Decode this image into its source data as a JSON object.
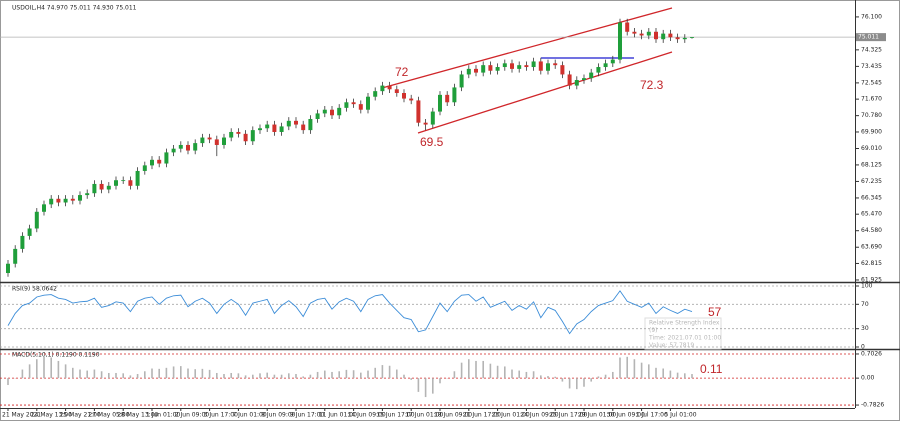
{
  "chart_data": [
    {
      "type": "candlestick",
      "title": "USDOIL,H4 74.970 75.011 74.930 75.011",
      "categories": [
        "21 May 2021",
        null,
        null,
        null,
        "24 May 13:00",
        null,
        null,
        null,
        "25 May 21:00",
        null,
        null,
        null,
        "27 May 05:00",
        null,
        null,
        null,
        "28 May 13:00",
        null,
        null,
        null,
        "1 Jun 01:00",
        null,
        null,
        null,
        "2 Jun 09:00",
        null,
        null,
        null,
        "3 Jun 17:00",
        null,
        null,
        null,
        "7 Jun 01:00",
        null,
        null,
        null,
        "8 Jun 09:00",
        null,
        null,
        null,
        "9 Jun 17:00",
        null,
        null,
        null,
        "11 Jun 01:00",
        null,
        null,
        null,
        "14 Jun 09:00",
        null,
        null,
        null,
        "15 Jun 17:00",
        null,
        null,
        null,
        "17 Jun 01:00",
        null,
        null,
        null,
        "18 Jun 09:00",
        null,
        null,
        null,
        "21 Jun 17:00",
        null,
        null,
        null,
        "23 Jun 01:00",
        null,
        null,
        null,
        "24 Jun 09:00",
        null,
        null,
        null,
        "25 Jun 17:00",
        null,
        null,
        null,
        "29 Jun 01:00",
        null,
        null,
        null,
        "30 Jun 09:00",
        null,
        null,
        null,
        "1 Jul 17:00",
        null,
        null,
        null,
        "5 Jul 01:00",
        null,
        null,
        null
      ],
      "open": [
        62.3,
        62.8,
        63.6,
        64.3,
        64.7,
        65.6,
        66.0,
        66.3,
        66.1,
        66.3,
        66.2,
        66.5,
        66.6,
        67.1,
        66.8,
        67.0,
        67.3,
        67.3,
        67.0,
        67.8,
        68.1,
        68.4,
        68.2,
        68.8,
        69.0,
        69.2,
        68.9,
        69.3,
        69.6,
        69.5,
        69.2,
        69.6,
        69.9,
        69.8,
        69.4,
        70.0,
        70.1,
        70.3,
        69.9,
        70.2,
        70.5,
        70.3,
        70.0,
        70.6,
        70.9,
        71.1,
        70.8,
        71.2,
        71.5,
        71.4,
        71.1,
        71.8,
        72.1,
        72.4,
        72.2,
        72.0,
        71.7,
        71.6,
        70.4,
        70.3,
        71.0,
        71.9,
        71.5,
        72.3,
        73.0,
        73.3,
        73.1,
        73.5,
        73.2,
        73.4,
        73.6,
        73.3,
        73.5,
        73.4,
        73.7,
        73.2,
        73.6,
        73.5,
        73.0,
        72.4,
        72.7,
        72.8,
        73.1,
        73.4,
        73.6,
        73.8,
        75.8,
        75.3,
        75.2,
        75.1,
        75.3,
        74.9,
        75.2,
        75.0,
        74.9,
        74.97
      ],
      "high": [
        63.0,
        63.8,
        64.5,
        64.9,
        65.8,
        66.2,
        66.5,
        66.5,
        66.5,
        66.5,
        66.7,
        66.8,
        67.3,
        67.3,
        67.2,
        67.5,
        67.5,
        67.5,
        68.0,
        68.3,
        68.6,
        68.6,
        69.0,
        69.2,
        69.4,
        69.4,
        69.5,
        69.8,
        69.8,
        69.7,
        69.8,
        70.1,
        70.1,
        70.0,
        70.2,
        70.3,
        70.5,
        70.5,
        70.4,
        70.7,
        70.7,
        70.5,
        70.8,
        71.1,
        71.3,
        71.3,
        71.4,
        71.7,
        71.7,
        71.6,
        72.0,
        72.3,
        72.6,
        72.6,
        72.4,
        72.2,
        71.9,
        71.8,
        70.6,
        71.2,
        72.1,
        72.1,
        72.5,
        73.2,
        73.5,
        73.5,
        73.7,
        73.7,
        73.6,
        73.8,
        73.8,
        73.7,
        73.7,
        73.9,
        73.9,
        73.8,
        73.8,
        73.7,
        73.2,
        72.9,
        73.0,
        73.3,
        73.6,
        73.8,
        74.0,
        76.0,
        76.0,
        75.5,
        75.4,
        75.5,
        75.5,
        75.4,
        75.4,
        75.2,
        75.17,
        75.011
      ],
      "low": [
        62.1,
        62.6,
        63.4,
        64.1,
        64.5,
        65.4,
        65.8,
        65.9,
        65.9,
        66.0,
        66.0,
        66.3,
        66.4,
        66.6,
        66.6,
        66.8,
        67.1,
        66.8,
        66.8,
        67.6,
        67.9,
        68.0,
        68.0,
        68.6,
        68.8,
        68.7,
        68.7,
        69.1,
        69.3,
        68.6,
        69.0,
        69.4,
        69.6,
        69.2,
        69.2,
        69.8,
        69.9,
        69.7,
        69.7,
        70.0,
        70.1,
        69.8,
        69.8,
        70.4,
        70.7,
        70.6,
        70.6,
        71.0,
        71.2,
        70.9,
        70.9,
        71.6,
        71.9,
        72.0,
        71.8,
        71.5,
        71.4,
        70.2,
        70.0,
        70.1,
        70.8,
        71.3,
        71.3,
        72.1,
        72.8,
        72.9,
        72.9,
        73.0,
        73.0,
        73.2,
        73.1,
        73.1,
        73.2,
        73.2,
        73.0,
        73.0,
        73.3,
        72.8,
        72.2,
        72.2,
        72.5,
        72.6,
        72.9,
        73.2,
        73.4,
        73.6,
        75.1,
        75.0,
        74.9,
        74.9,
        74.7,
        74.7,
        74.8,
        74.7,
        74.7,
        74.93
      ],
      "close": [
        62.8,
        63.6,
        64.3,
        64.7,
        65.6,
        66.0,
        66.3,
        66.1,
        66.3,
        66.2,
        66.5,
        66.6,
        67.1,
        66.8,
        67.0,
        67.3,
        67.3,
        67.0,
        67.8,
        68.1,
        68.4,
        68.2,
        68.8,
        69.0,
        69.2,
        68.9,
        69.3,
        69.6,
        69.5,
        69.2,
        69.6,
        69.9,
        69.8,
        69.4,
        70.0,
        70.1,
        70.3,
        69.9,
        70.2,
        70.5,
        70.3,
        70.0,
        70.6,
        70.9,
        71.1,
        70.8,
        71.2,
        71.5,
        71.4,
        71.1,
        71.8,
        72.1,
        72.4,
        72.2,
        72.0,
        71.7,
        71.6,
        70.4,
        70.3,
        71.0,
        71.9,
        71.5,
        72.3,
        73.0,
        73.3,
        73.1,
        73.5,
        73.2,
        73.4,
        73.6,
        73.3,
        73.5,
        73.4,
        73.7,
        73.2,
        73.6,
        73.5,
        73.0,
        72.4,
        72.7,
        72.8,
        73.1,
        73.4,
        73.6,
        73.8,
        75.8,
        75.3,
        75.2,
        75.1,
        75.3,
        74.9,
        75.2,
        75.0,
        74.9,
        74.97,
        75.011
      ],
      "up_color": "#1f9e3a",
      "down_color": "#d0312d",
      "ylim": [
        61.87,
        76.85
      ],
      "yticks": [
        {
          "value": 76.1,
          "label": "76.100"
        },
        74.325,
        73.435,
        72.545,
        {
          "value": 71.67,
          "label": "71.670"
        },
        {
          "value": 70.78,
          "label": "70.780"
        },
        {
          "value": 69.9,
          "label": "69.900"
        },
        {
          "value": 69.01,
          "label": "69.010"
        },
        68.125,
        67.235,
        66.345,
        {
          "value": 65.47,
          "label": "65.470"
        },
        {
          "value": 64.58,
          "label": "64.580"
        },
        {
          "value": 63.69,
          "label": "63.690"
        },
        62.815,
        61.925
      ],
      "last_price": 75.011,
      "grid": false,
      "annotations": [
        "72",
        "69.5",
        "72.3"
      ]
    },
    {
      "type": "line",
      "title": "RSI(9) 58.0642",
      "values": [
        35,
        55,
        68,
        72,
        82,
        85,
        86,
        80,
        78,
        72,
        74,
        75,
        80,
        65,
        68,
        74,
        72,
        58,
        75,
        80,
        82,
        70,
        80,
        84,
        85,
        66,
        75,
        80,
        72,
        55,
        70,
        78,
        70,
        52,
        72,
        75,
        78,
        55,
        68,
        76,
        66,
        50,
        72,
        78,
        80,
        62,
        74,
        80,
        75,
        58,
        78,
        84,
        86,
        72,
        60,
        48,
        45,
        25,
        28,
        50,
        72,
        58,
        75,
        85,
        86,
        75,
        82,
        65,
        70,
        75,
        60,
        68,
        62,
        74,
        48,
        65,
        60,
        42,
        22,
        38,
        45,
        58,
        68,
        72,
        76,
        92,
        75,
        70,
        65,
        72,
        55,
        66,
        60,
        55,
        62,
        58.0642
      ],
      "color": "#3c8dd8",
      "ylim": [
        0,
        100
      ],
      "yticks": [
        100,
        70,
        30,
        0
      ],
      "grid": true,
      "grid_color": "#a8a8a8",
      "annotations": [
        "57"
      ],
      "tooltip": [
        "Relative Strength Index",
        "(9)",
        "Time: 2021.07.01 01:00",
        "Value: 57.7819"
      ]
    },
    {
      "type": "histogram",
      "title": "MACD(5,10,1) 0.1190 0.1190",
      "values": [
        -0.2,
        0.0,
        0.25,
        0.4,
        0.55,
        0.62,
        0.6,
        0.5,
        0.4,
        0.3,
        0.25,
        0.22,
        0.25,
        0.2,
        0.15,
        0.15,
        0.14,
        0.08,
        0.12,
        0.2,
        0.28,
        0.27,
        0.3,
        0.34,
        0.35,
        0.28,
        0.26,
        0.27,
        0.24,
        0.15,
        0.12,
        0.15,
        0.14,
        0.08,
        0.1,
        0.14,
        0.16,
        0.1,
        0.1,
        0.14,
        0.12,
        0.05,
        0.1,
        0.18,
        0.22,
        0.18,
        0.2,
        0.24,
        0.23,
        0.16,
        0.22,
        0.3,
        0.38,
        0.36,
        0.25,
        0.1,
        -0.05,
        -0.4,
        -0.55,
        -0.45,
        -0.15,
        0.0,
        0.2,
        0.45,
        0.55,
        0.5,
        0.5,
        0.42,
        0.36,
        0.34,
        0.25,
        0.22,
        0.18,
        0.2,
        0.08,
        0.06,
        0.04,
        -0.1,
        -0.3,
        -0.32,
        -0.25,
        -0.1,
        0.05,
        0.1,
        0.18,
        0.6,
        0.62,
        0.55,
        0.45,
        0.4,
        0.3,
        0.28,
        0.22,
        0.16,
        0.14,
        0.119
      ],
      "color": "#b4b4b4",
      "ylim": [
        -0.81,
        0.76
      ],
      "yticks": [
        0.7026,
        {
          "value": 0,
          "label": "0.00"
        },
        -0.7826
      ],
      "grid": true,
      "grid_color": "#d02020",
      "annotations": [
        "0.11"
      ]
    }
  ]
}
